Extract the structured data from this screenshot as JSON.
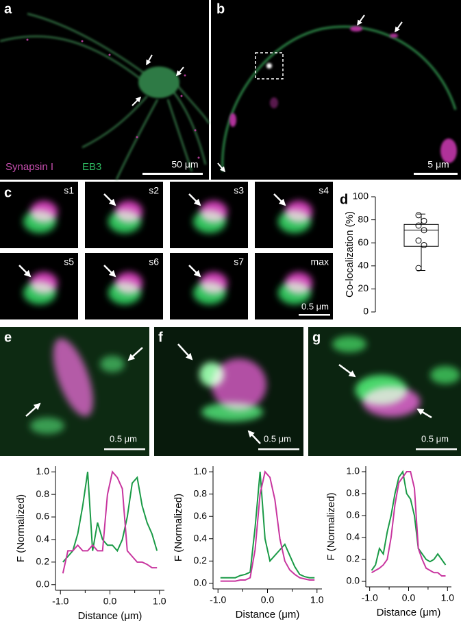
{
  "images": [
    {
      "letter": "a",
      "labels": [
        "Synapsin I",
        "EB3"
      ],
      "scale_bar": "50 μm"
    },
    {
      "letter": "b",
      "scale_bar": "5 μm"
    },
    {
      "letter": "c",
      "tiles": [
        "s1",
        "s2",
        "s3",
        "s4",
        "s5",
        "s6",
        "s7",
        "max"
      ],
      "scale_bar": "0.5 μm"
    },
    {
      "letter": "e",
      "scale_bar": "0.5 μm"
    },
    {
      "letter": "f",
      "scale_bar": "0.5 μm"
    },
    {
      "letter": "g",
      "scale_bar": "0.5 μm"
    }
  ],
  "charts": [
    {
      "type": "box",
      "letter": "d",
      "ylabel": "Co-localization (%)",
      "color": "#000000",
      "ylim": [
        0,
        100
      ],
      "yticks": [
        0,
        20,
        40,
        60,
        80,
        100
      ],
      "box": {
        "whisker_low": 36,
        "q1": 57,
        "median": 71,
        "q3": 76,
        "whisker_high": 85
      },
      "points": [
        84,
        79,
        75,
        71,
        62,
        58,
        38
      ]
    },
    {
      "type": "line",
      "xlabel": "Distance (μm)",
      "ylabel": "F (Normalized)",
      "x": [
        -0.95,
        -0.85,
        -0.75,
        -0.65,
        -0.55,
        -0.45,
        -0.35,
        -0.25,
        -0.15,
        -0.05,
        0.05,
        0.15,
        0.25,
        0.35,
        0.45,
        0.55,
        0.65,
        0.75,
        0.85,
        0.95
      ],
      "series": [
        {
          "color": "#1a9a46",
          "values": [
            0.2,
            0.25,
            0.3,
            0.45,
            0.7,
            1.0,
            0.3,
            0.55,
            0.4,
            0.35,
            0.35,
            0.3,
            0.4,
            0.6,
            0.9,
            0.95,
            0.7,
            0.55,
            0.45,
            0.3
          ]
        },
        {
          "color": "#c8359f",
          "values": [
            0.1,
            0.3,
            0.3,
            0.35,
            0.3,
            0.3,
            0.35,
            0.3,
            0.3,
            0.8,
            1.0,
            0.95,
            0.85,
            0.3,
            0.25,
            0.2,
            0.2,
            0.18,
            0.15,
            0.15
          ]
        }
      ],
      "xlim": [
        -1.1,
        1.1
      ],
      "ylim": [
        -0.05,
        1.05
      ],
      "xticks": [
        {
          "value": -1,
          "label": "-1.0"
        },
        {
          "value": 0,
          "label": "0.0"
        },
        {
          "value": 1,
          "label": "1.0"
        }
      ],
      "xminorticks": [
        -0.5,
        0.5
      ],
      "yticks": [
        {
          "value": 0,
          "label": "0.0"
        },
        0.2,
        0.4,
        0.6,
        0.8,
        {
          "value": 1,
          "label": "1.0"
        }
      ]
    },
    {
      "type": "line",
      "xlabel": "Distance (μm)",
      "ylabel": "F (Normalized)",
      "x": [
        -0.95,
        -0.85,
        -0.75,
        -0.65,
        -0.55,
        -0.45,
        -0.35,
        -0.25,
        -0.15,
        -0.05,
        0.05,
        0.15,
        0.25,
        0.35,
        0.45,
        0.55,
        0.65,
        0.75,
        0.85,
        0.95
      ],
      "series": [
        {
          "color": "#1a9a46",
          "values": [
            0.05,
            0.05,
            0.05,
            0.05,
            0.07,
            0.08,
            0.1,
            0.5,
            1.0,
            0.4,
            0.2,
            0.25,
            0.3,
            0.35,
            0.25,
            0.15,
            0.08,
            0.06,
            0.05,
            0.05
          ]
        },
        {
          "color": "#c8359f",
          "values": [
            0.02,
            0.02,
            0.02,
            0.02,
            0.03,
            0.03,
            0.05,
            0.3,
            0.8,
            1.0,
            0.95,
            0.75,
            0.4,
            0.2,
            0.12,
            0.08,
            0.05,
            0.04,
            0.03,
            0.03
          ]
        }
      ],
      "xlim": [
        -1.1,
        1.1
      ],
      "ylim": [
        -0.05,
        1.05
      ],
      "xticks": [
        {
          "value": -1,
          "label": "-1.0"
        },
        {
          "value": 0,
          "label": "0.0"
        },
        {
          "value": 1,
          "label": "1.0"
        }
      ],
      "xminorticks": [
        -0.5,
        0.5
      ],
      "yticks": [
        {
          "value": 0,
          "label": "0.0"
        },
        0.2,
        0.4,
        0.6,
        0.8,
        {
          "value": 1,
          "label": "1.0"
        }
      ]
    },
    {
      "type": "line",
      "xlabel": "Distance (μm)",
      "ylabel": "F (Normalized)",
      "x": [
        -0.95,
        -0.85,
        -0.75,
        -0.65,
        -0.55,
        -0.45,
        -0.35,
        -0.25,
        -0.15,
        -0.05,
        0.05,
        0.15,
        0.25,
        0.35,
        0.45,
        0.55,
        0.65,
        0.75,
        0.85,
        0.95
      ],
      "series": [
        {
          "color": "#1a9a46",
          "values": [
            0.1,
            0.15,
            0.3,
            0.25,
            0.45,
            0.6,
            0.8,
            0.95,
            1.0,
            0.8,
            0.75,
            0.6,
            0.3,
            0.25,
            0.2,
            0.18,
            0.2,
            0.25,
            0.2,
            0.15
          ]
        },
        {
          "color": "#c8359f",
          "values": [
            0.08,
            0.1,
            0.12,
            0.15,
            0.2,
            0.4,
            0.7,
            0.9,
            0.95,
            1.0,
            1.0,
            0.85,
            0.3,
            0.2,
            0.12,
            0.1,
            0.08,
            0.08,
            0.05,
            0.05
          ]
        }
      ],
      "xlim": [
        -1.1,
        1.1
      ],
      "ylim": [
        -0.05,
        1.05
      ],
      "xticks": [
        {
          "value": -1,
          "label": "-1.0"
        },
        {
          "value": 0,
          "label": "0.0"
        },
        {
          "value": 1,
          "label": "1.0"
        }
      ],
      "xminorticks": [
        -0.5,
        0.5
      ],
      "yticks": [
        {
          "value": 0,
          "label": "0.0"
        },
        0.2,
        0.4,
        0.6,
        0.8,
        {
          "value": 1,
          "label": "1.0"
        }
      ]
    }
  ]
}
